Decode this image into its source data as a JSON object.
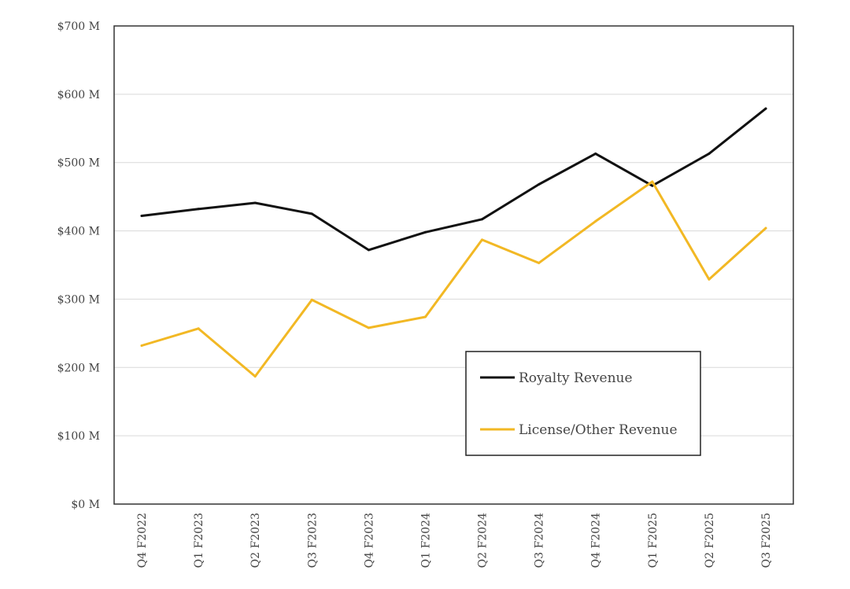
{
  "chart_data": {
    "type": "line",
    "categories": [
      "Q4 F2022",
      "Q1 F2023",
      "Q2 F2023",
      "Q3 F2023",
      "Q4 F2023",
      "Q1 F2024",
      "Q2 F2024",
      "Q3 F2024",
      "Q4 F2024",
      "Q1 F2025",
      "Q2 F2025",
      "Q3 F2025"
    ],
    "series": [
      {
        "name": "Royalty Revenue",
        "color": "#111111",
        "values": [
          422,
          432,
          441,
          425,
          372,
          398,
          417,
          468,
          513,
          466,
          513,
          579
        ]
      },
      {
        "name": "License/Other Revenue",
        "color": "#F2B824",
        "values": [
          232,
          257,
          187,
          299,
          258,
          274,
          387,
          353,
          414,
          472,
          329,
          404
        ]
      }
    ],
    "ylim": [
      0,
      700
    ],
    "yticks": [
      0,
      100,
      200,
      300,
      400,
      500,
      600,
      700
    ],
    "ytick_labels": [
      "$0 M",
      "$100 M",
      "$200 M",
      "$300 M",
      "$400 M",
      "$500 M",
      "$600 M",
      "$700 M"
    ],
    "grid": true,
    "legend_position": "lower-right",
    "title": "",
    "xlabel": "",
    "ylabel": ""
  }
}
